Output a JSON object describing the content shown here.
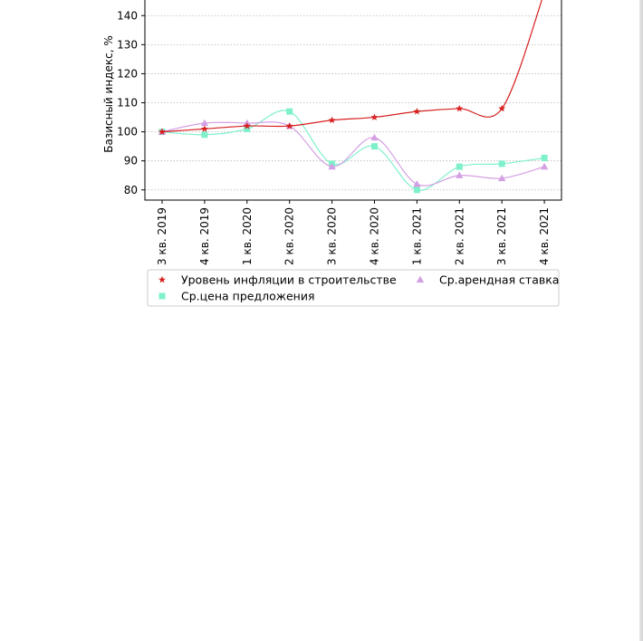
{
  "chart_data": {
    "type": "line",
    "title": "",
    "xlabel": "",
    "ylabel": "Базисный индекс, %",
    "categories": [
      "3 кв. 2019",
      "4 кв. 2019",
      "1 кв. 2020",
      "2 кв. 2020",
      "3 кв. 2020",
      "4 кв. 2020",
      "1 кв. 2021",
      "2 кв. 2021",
      "3 кв. 2021",
      "4 кв. 2021"
    ],
    "yticks": [
      80,
      90,
      100,
      110,
      120,
      130,
      140
    ],
    "ylim": [
      76.5,
      146
    ],
    "grid": "horizontal dotted",
    "legend_position": "below chart",
    "series": [
      {
        "name": "Уровень инфляции в строительстве",
        "color": "#d62020",
        "marker": "star",
        "values": [
          100,
          101,
          102,
          102,
          104,
          105,
          107,
          108,
          108,
          148
        ]
      },
      {
        "name": "Ср.арендная ставка",
        "color": "#d4a0e4",
        "marker": "triangle",
        "values": [
          100,
          103,
          103,
          102,
          88,
          98,
          82,
          85,
          84,
          88
        ]
      },
      {
        "name": "Ср.цена предложения",
        "color": "#7ff0cc",
        "marker": "square",
        "values": [
          100,
          99,
          101,
          107,
          89,
          95,
          80,
          88,
          89,
          91
        ]
      }
    ]
  }
}
